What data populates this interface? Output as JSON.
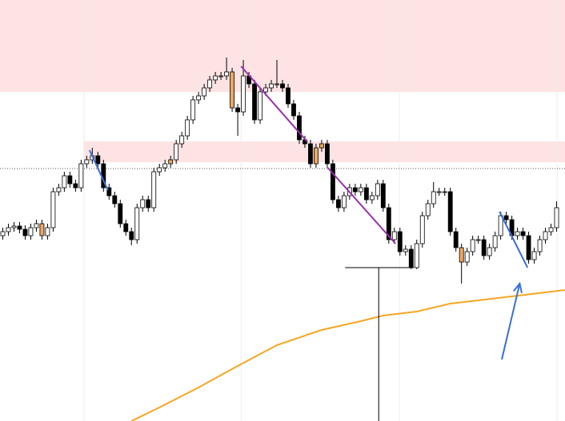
{
  "chart_data": {
    "type": "candlestick",
    "xlim": [
      -0.5,
      100.5
    ],
    "ylim": [
      0,
      527
    ],
    "grid_x": [
      14.5,
      42.6,
      70.9,
      99.1
    ],
    "up_color": "#ffffff",
    "down_color": "#000000",
    "edge_color": "#000000",
    "highlight_color": "#f0a860",
    "highlighted": [
      7,
      30,
      41,
      56,
      57,
      82
    ],
    "open": [
      232,
      237,
      242,
      244,
      240,
      232,
      242,
      247,
      232,
      242,
      287,
      292,
      307,
      297,
      292,
      322,
      327,
      332,
      322,
      292,
      282,
      272,
      247,
      237,
      227,
      267,
      277,
      267,
      312,
      317,
      322,
      327,
      347,
      357,
      377,
      402,
      407,
      417,
      427,
      432,
      432,
      437,
      392,
      387,
      432,
      422,
      377,
      412,
      417,
      422,
      422,
      417,
      397,
      382,
      352,
      347,
      322,
      342,
      347,
      322,
      277,
      267,
      282,
      292,
      287,
      292,
      277,
      282,
      297,
      267,
      227,
      237,
      212,
      215,
      192,
      222,
      257,
      272,
      287,
      287,
      287,
      237,
      217,
      199,
      212,
      227,
      227,
      207,
      217,
      232,
      257,
      252,
      232,
      237,
      232,
      202,
      212,
      227,
      237,
      242
    ],
    "high": [
      242,
      247,
      249,
      249,
      245,
      247,
      252,
      252,
      247,
      292,
      297,
      312,
      312,
      302,
      327,
      332,
      342,
      337,
      327,
      297,
      287,
      277,
      252,
      242,
      272,
      282,
      282,
      317,
      322,
      327,
      332,
      352,
      362,
      382,
      407,
      412,
      422,
      432,
      437,
      437,
      455,
      442,
      397,
      452,
      437,
      427,
      417,
      422,
      427,
      452,
      427,
      422,
      402,
      387,
      357,
      352,
      347,
      352,
      352,
      327,
      282,
      287,
      297,
      297,
      297,
      297,
      287,
      302,
      302,
      272,
      242,
      242,
      220,
      220,
      227,
      262,
      277,
      299,
      292,
      292,
      292,
      242,
      222,
      217,
      232,
      232,
      232,
      222,
      237,
      262,
      262,
      257,
      242,
      242,
      237,
      217,
      232,
      242,
      247,
      275
    ],
    "low": [
      227,
      232,
      237,
      235,
      227,
      227,
      237,
      227,
      227,
      237,
      282,
      287,
      292,
      287,
      287,
      317,
      322,
      317,
      287,
      277,
      267,
      242,
      232,
      220,
      222,
      262,
      262,
      262,
      307,
      312,
      317,
      322,
      342,
      352,
      372,
      397,
      402,
      412,
      422,
      427,
      427,
      387,
      357,
      382,
      417,
      372,
      372,
      407,
      412,
      417,
      412,
      392,
      377,
      347,
      342,
      317,
      317,
      337,
      317,
      272,
      262,
      262,
      277,
      282,
      282,
      272,
      272,
      277,
      262,
      222,
      222,
      207,
      207,
      190,
      190,
      217,
      252,
      267,
      282,
      282,
      232,
      212,
      172,
      194,
      207,
      222,
      202,
      202,
      212,
      227,
      247,
      227,
      227,
      227,
      197,
      197,
      207,
      222,
      232,
      237
    ],
    "close": [
      237,
      242,
      244,
      240,
      232,
      242,
      247,
      232,
      242,
      287,
      292,
      307,
      297,
      292,
      322,
      327,
      332,
      322,
      292,
      282,
      272,
      247,
      237,
      227,
      267,
      277,
      267,
      312,
      317,
      322,
      327,
      347,
      357,
      377,
      402,
      407,
      417,
      427,
      432,
      432,
      437,
      392,
      387,
      432,
      422,
      377,
      412,
      417,
      422,
      422,
      417,
      397,
      382,
      352,
      347,
      322,
      342,
      347,
      322,
      277,
      267,
      282,
      292,
      287,
      292,
      277,
      282,
      297,
      267,
      227,
      237,
      212,
      215,
      192,
      222,
      257,
      272,
      287,
      287,
      287,
      237,
      217,
      199,
      212,
      227,
      227,
      207,
      217,
      232,
      257,
      252,
      232,
      237,
      232,
      202,
      212,
      227,
      237,
      242,
      267
    ],
    "moving_average": {
      "color": "#f5a623",
      "x": [
        23,
        28,
        35,
        42,
        49,
        57,
        64,
        68,
        74,
        80,
        85,
        91,
        100.5
      ],
      "values": [
        0,
        17,
        42,
        69,
        95,
        114,
        125,
        132,
        137,
        147,
        151,
        156,
        164
      ]
    },
    "zones": [
      {
        "color": "#fde3e3",
        "x": [
          -0.5,
          100.5
        ],
        "y": [
          412,
          527
        ]
      },
      {
        "color": "#fde3e3",
        "x": [
          14.5,
          100.5
        ],
        "y": [
          324,
          350
        ]
      }
    ],
    "dotted_level": {
      "color": "#555555",
      "value": 316
    },
    "trend_lines": [
      {
        "color": "#3a6fd8",
        "x": [
          15.5,
          18.8
        ],
        "y": [
          339,
          289
        ]
      },
      {
        "color": "#9b2fae",
        "x": [
          42.6,
          54.5
        ],
        "y": [
          444,
          349
        ]
      },
      {
        "color": "#9b2fae",
        "x": [
          58.1,
          70.2
        ],
        "y": [
          317,
          222
        ]
      },
      {
        "color": "#3a6fd8",
        "x": [
          88.8,
          93.8
        ],
        "y": [
          262,
          192
        ]
      }
    ],
    "black_lines": [
      {
        "x": [
          61.2,
          73.5
        ],
        "y": [
          192,
          192
        ]
      },
      {
        "x": [
          67.2,
          67.2
        ],
        "y": [
          192,
          0
        ]
      }
    ],
    "arrow": {
      "color": "#3a6fd8",
      "x": [
        89.2,
        92.4
      ],
      "y": [
        77,
        172
      ]
    }
  }
}
